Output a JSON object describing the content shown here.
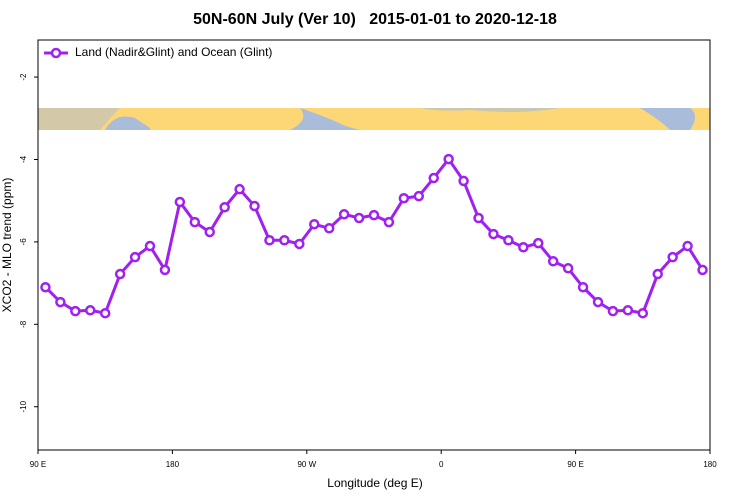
{
  "chart_data": {
    "type": "line",
    "title": "50N-60N July (Ver 10)   2015-01-01 to 2020-12-18",
    "xlabel": "Longitude (deg E)",
    "ylabel": "XCO2 - MLO trend (ppm)",
    "xlim": [
      90,
      540
    ],
    "ylim": [
      -11.05,
      -1.1
    ],
    "xticks": [
      {
        "value": 90,
        "label": "90 E"
      },
      {
        "value": 180,
        "label": "180"
      },
      {
        "value": 270,
        "label": "90 W"
      },
      {
        "value": 360,
        "label": "0"
      },
      {
        "value": 450,
        "label": "90 E"
      },
      {
        "value": 540,
        "label": "180"
      }
    ],
    "yticks": [
      -2,
      -4,
      -6,
      -8,
      -10
    ],
    "legend": "upper left",
    "x": [
      95,
      105,
      115,
      125,
      135,
      145,
      155,
      165,
      175,
      185,
      195,
      205,
      215,
      225,
      235,
      245,
      255,
      265,
      275,
      285,
      295,
      305,
      315,
      325,
      335,
      345,
      355,
      365,
      375,
      385,
      395,
      405,
      415,
      425,
      435,
      445,
      455,
      465,
      475,
      485,
      495,
      505,
      515,
      525,
      535
    ],
    "series": [
      {
        "name": "Land (Nadir&Glint) and Ocean (Glint)",
        "color": "#a020f0",
        "values": [
          -7.1,
          -7.46,
          -7.68,
          -7.66,
          -7.73,
          -6.78,
          -6.37,
          -6.1,
          -6.68,
          -5.03,
          -5.52,
          -5.76,
          -5.16,
          -4.72,
          -5.13,
          -5.96,
          -5.96,
          -6.05,
          -5.57,
          -5.67,
          -5.33,
          -5.42,
          -5.35,
          -5.52,
          -4.94,
          -4.89,
          -4.45,
          -3.99,
          -4.52,
          -5.42,
          -5.81,
          -5.96,
          -6.13,
          -6.03,
          -6.47,
          -6.64,
          -7.1,
          -7.46,
          -7.68,
          -7.66,
          -7.73,
          -6.78,
          -6.37,
          -6.1,
          -6.68
        ]
      }
    ]
  }
}
